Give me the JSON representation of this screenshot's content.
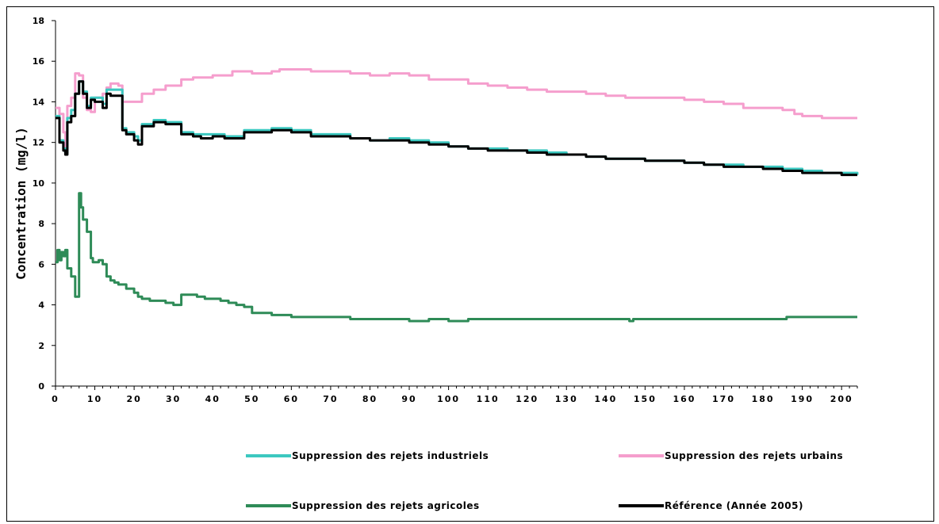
{
  "chart_data": {
    "type": "line",
    "title": "",
    "xlabel": "",
    "ylabel": "Concentration (mg/l)",
    "xlim": [
      0,
      204
    ],
    "ylim": [
      0,
      18
    ],
    "x_ticks": [
      0,
      10,
      20,
      30,
      40,
      50,
      60,
      70,
      80,
      90,
      100,
      110,
      120,
      130,
      140,
      150,
      160,
      170,
      180,
      190,
      200
    ],
    "y_ticks": [
      0,
      2,
      4,
      6,
      8,
      10,
      12,
      14,
      16,
      18
    ],
    "grid": false,
    "legend_position": "bottom",
    "series": [
      {
        "name": "Suppression des rejets  industriels",
        "color": "#3cc8c0",
        "x": [
          0,
          1,
          2,
          2.5,
          3,
          4,
          5,
          6,
          7,
          8,
          9,
          10,
          12,
          13,
          14,
          16,
          17,
          18,
          20,
          21,
          22,
          25,
          28,
          32,
          35,
          37,
          40,
          43,
          48,
          50,
          55,
          60,
          65,
          70,
          75,
          80,
          85,
          90,
          95,
          100,
          105,
          110,
          115,
          120,
          125,
          130,
          135,
          140,
          145,
          150,
          155,
          160,
          165,
          170,
          175,
          180,
          185,
          190,
          195,
          200,
          204
        ],
        "y": [
          13.3,
          12.1,
          11.7,
          11.5,
          13.2,
          13.6,
          14.4,
          15.0,
          14.5,
          13.8,
          14.2,
          14.2,
          13.9,
          14.6,
          14.6,
          14.6,
          12.7,
          12.5,
          12.3,
          12.1,
          12.9,
          13.1,
          13.0,
          12.5,
          12.4,
          12.4,
          12.4,
          12.3,
          12.6,
          12.6,
          12.7,
          12.6,
          12.4,
          12.4,
          12.2,
          12.1,
          12.2,
          12.1,
          12.0,
          11.8,
          11.7,
          11.7,
          11.6,
          11.6,
          11.5,
          11.4,
          11.3,
          11.2,
          11.2,
          11.1,
          11.1,
          11.0,
          10.9,
          10.9,
          10.8,
          10.8,
          10.7,
          10.6,
          10.5,
          10.5,
          10.4
        ]
      },
      {
        "name": "Suppression des rejets urbains",
        "color": "#f59ecd",
        "x": [
          0,
          1,
          2,
          2.5,
          3,
          4,
          5,
          6,
          7,
          8,
          9,
          10,
          12,
          13,
          14,
          16,
          17,
          18,
          20,
          21,
          22,
          25,
          28,
          32,
          35,
          40,
          45,
          50,
          55,
          57,
          60,
          65,
          70,
          75,
          80,
          85,
          90,
          95,
          100,
          105,
          110,
          115,
          120,
          125,
          130,
          135,
          140,
          145,
          150,
          155,
          160,
          165,
          170,
          175,
          180,
          185,
          188,
          190,
          195,
          200,
          204
        ],
        "y": [
          13.7,
          13.4,
          12.5,
          11.6,
          13.8,
          14.2,
          15.4,
          15.3,
          14.2,
          13.6,
          13.5,
          14.2,
          14.4,
          14.7,
          14.9,
          14.8,
          14.0,
          14.0,
          14.0,
          14.0,
          14.4,
          14.6,
          14.8,
          15.1,
          15.2,
          15.3,
          15.5,
          15.4,
          15.5,
          15.6,
          15.6,
          15.5,
          15.5,
          15.4,
          15.3,
          15.4,
          15.3,
          15.1,
          15.1,
          14.9,
          14.8,
          14.7,
          14.6,
          14.5,
          14.5,
          14.4,
          14.3,
          14.2,
          14.2,
          14.2,
          14.1,
          14.0,
          13.9,
          13.7,
          13.7,
          13.6,
          13.4,
          13.3,
          13.2,
          13.2,
          13.2
        ]
      },
      {
        "name": "Suppression des rejets agricoles",
        "color": "#2e8b57",
        "x": [
          0,
          0.5,
          1,
          1.5,
          2,
          2.5,
          3,
          4,
          5,
          5.5,
          6,
          6.5,
          7,
          8,
          9,
          9.5,
          10,
          11,
          12,
          13,
          14,
          15,
          16,
          18,
          20,
          21,
          22,
          24,
          26,
          28,
          30,
          31,
          32,
          34,
          36,
          38,
          40,
          42,
          44,
          46,
          48,
          50,
          55,
          60,
          65,
          70,
          75,
          80,
          85,
          90,
          95,
          100,
          105,
          110,
          115,
          120,
          130,
          140,
          146,
          147,
          150,
          160,
          170,
          180,
          186,
          190,
          195,
          200,
          204
        ],
        "y": [
          6.1,
          6.7,
          6.2,
          6.6,
          6.4,
          6.7,
          5.8,
          5.4,
          4.4,
          4.4,
          9.5,
          8.8,
          8.2,
          7.6,
          6.3,
          6.1,
          6.1,
          6.2,
          6.0,
          5.4,
          5.2,
          5.1,
          5.0,
          4.8,
          4.6,
          4.4,
          4.3,
          4.2,
          4.2,
          4.1,
          4.0,
          4.0,
          4.5,
          4.5,
          4.4,
          4.3,
          4.3,
          4.2,
          4.1,
          4.0,
          3.9,
          3.6,
          3.5,
          3.4,
          3.4,
          3.4,
          3.3,
          3.3,
          3.3,
          3.2,
          3.3,
          3.2,
          3.3,
          3.3,
          3.3,
          3.3,
          3.3,
          3.3,
          3.2,
          3.3,
          3.3,
          3.3,
          3.3,
          3.3,
          3.4,
          3.4,
          3.4,
          3.4,
          3.4
        ]
      },
      {
        "name": "Référence (Année 2005)",
        "color": "#000000",
        "x": [
          0,
          1,
          2,
          2.5,
          3,
          4,
          5,
          6,
          7,
          8,
          9,
          10,
          12,
          13,
          14,
          16,
          17,
          18,
          20,
          21,
          22,
          25,
          28,
          32,
          35,
          37,
          40,
          43,
          48,
          50,
          55,
          60,
          65,
          70,
          75,
          80,
          85,
          90,
          95,
          100,
          105,
          110,
          115,
          120,
          125,
          130,
          135,
          140,
          145,
          150,
          155,
          160,
          165,
          170,
          175,
          180,
          185,
          190,
          195,
          200,
          204
        ],
        "y": [
          13.2,
          12.0,
          11.6,
          11.4,
          13.0,
          13.3,
          14.4,
          15.0,
          14.4,
          13.7,
          14.1,
          14.0,
          13.7,
          14.4,
          14.3,
          14.3,
          12.6,
          12.4,
          12.1,
          11.9,
          12.8,
          13.0,
          12.9,
          12.4,
          12.3,
          12.2,
          12.3,
          12.2,
          12.5,
          12.5,
          12.6,
          12.5,
          12.3,
          12.3,
          12.2,
          12.1,
          12.1,
          12.0,
          11.9,
          11.8,
          11.7,
          11.6,
          11.6,
          11.5,
          11.4,
          11.4,
          11.3,
          11.2,
          11.2,
          11.1,
          11.1,
          11.0,
          10.9,
          10.8,
          10.8,
          10.7,
          10.6,
          10.5,
          10.5,
          10.4,
          10.4
        ]
      }
    ]
  }
}
